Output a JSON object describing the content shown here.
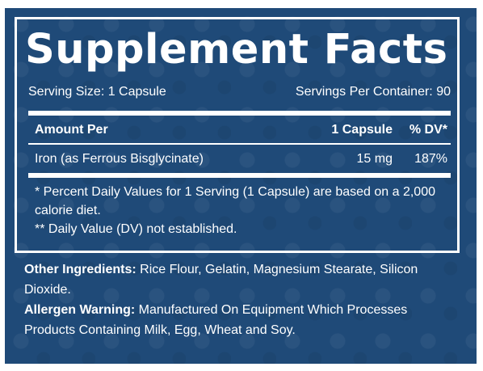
{
  "title": "Supplement Facts",
  "serving": {
    "size": "Serving Size: 1 Capsule",
    "per_container": "Servings Per Container: 90"
  },
  "table": {
    "headers": {
      "amount_per": "Amount Per",
      "capsule": "1 Capsule",
      "dv": "% DV*"
    },
    "rows": [
      {
        "name": "Iron (as Ferrous Bisglycinate)",
        "amount": "15 mg",
        "dv": "187%"
      }
    ]
  },
  "footnotes": {
    "line1": "* Percent Daily Values for 1 Serving (1 Capsule) are based on a 2,000 calorie diet.",
    "line2": "** Daily Value (DV) not established."
  },
  "other_ingredients": {
    "label": "Other Ingredients:",
    "text": " Rice Flour, Gelatin, Magnesium Stearate, Silicon Dioxide."
  },
  "allergen_warning": {
    "label": "Allergen Warning:",
    "text": " Manufactured On Equipment Which Processes Products Containing Milk, Egg, Wheat and Soy."
  },
  "colors": {
    "background": "#1f4a78",
    "text": "#ffffff"
  }
}
